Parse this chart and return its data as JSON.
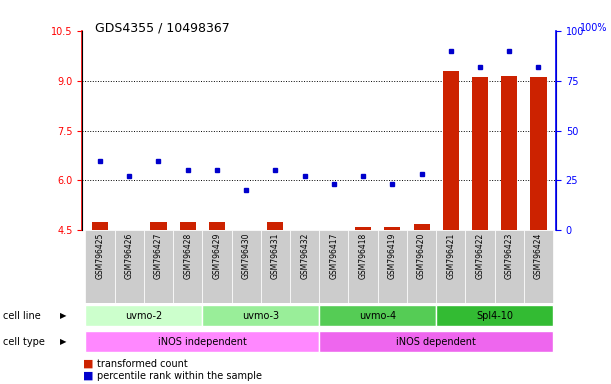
{
  "title": "GDS4355 / 10498367",
  "samples": [
    "GSM796425",
    "GSM796426",
    "GSM796427",
    "GSM796428",
    "GSM796429",
    "GSM796430",
    "GSM796431",
    "GSM796432",
    "GSM796417",
    "GSM796418",
    "GSM796419",
    "GSM796420",
    "GSM796421",
    "GSM796422",
    "GSM796423",
    "GSM796424"
  ],
  "transformed_count": [
    4.75,
    4.5,
    4.75,
    4.75,
    4.75,
    4.5,
    4.75,
    4.5,
    4.5,
    4.6,
    4.6,
    4.7,
    9.3,
    9.1,
    9.15,
    9.1
  ],
  "percentile_rank_pct": [
    35,
    27,
    35,
    30,
    30,
    20,
    30,
    27,
    23,
    27,
    23,
    28,
    90,
    82,
    90,
    82
  ],
  "cell_line_groups": [
    {
      "label": "uvmo-2",
      "start": 0,
      "end": 3,
      "color": "#ccffcc"
    },
    {
      "label": "uvmo-3",
      "start": 4,
      "end": 7,
      "color": "#99ee99"
    },
    {
      "label": "uvmo-4",
      "start": 8,
      "end": 11,
      "color": "#55cc55"
    },
    {
      "label": "Spl4-10",
      "start": 12,
      "end": 15,
      "color": "#33bb33"
    }
  ],
  "cell_type_groups": [
    {
      "label": "iNOS independent",
      "start": 0,
      "end": 7,
      "color": "#ff88ff"
    },
    {
      "label": "iNOS dependent",
      "start": 8,
      "end": 15,
      "color": "#ee66ee"
    }
  ],
  "ylim_left": [
    4.5,
    10.5
  ],
  "yticks_left": [
    4.5,
    6.0,
    7.5,
    9.0,
    10.5
  ],
  "ylim_right": [
    0,
    100
  ],
  "yticks_right": [
    0,
    25,
    50,
    75,
    100
  ],
  "bar_color": "#cc2200",
  "dot_color": "#0000cc"
}
